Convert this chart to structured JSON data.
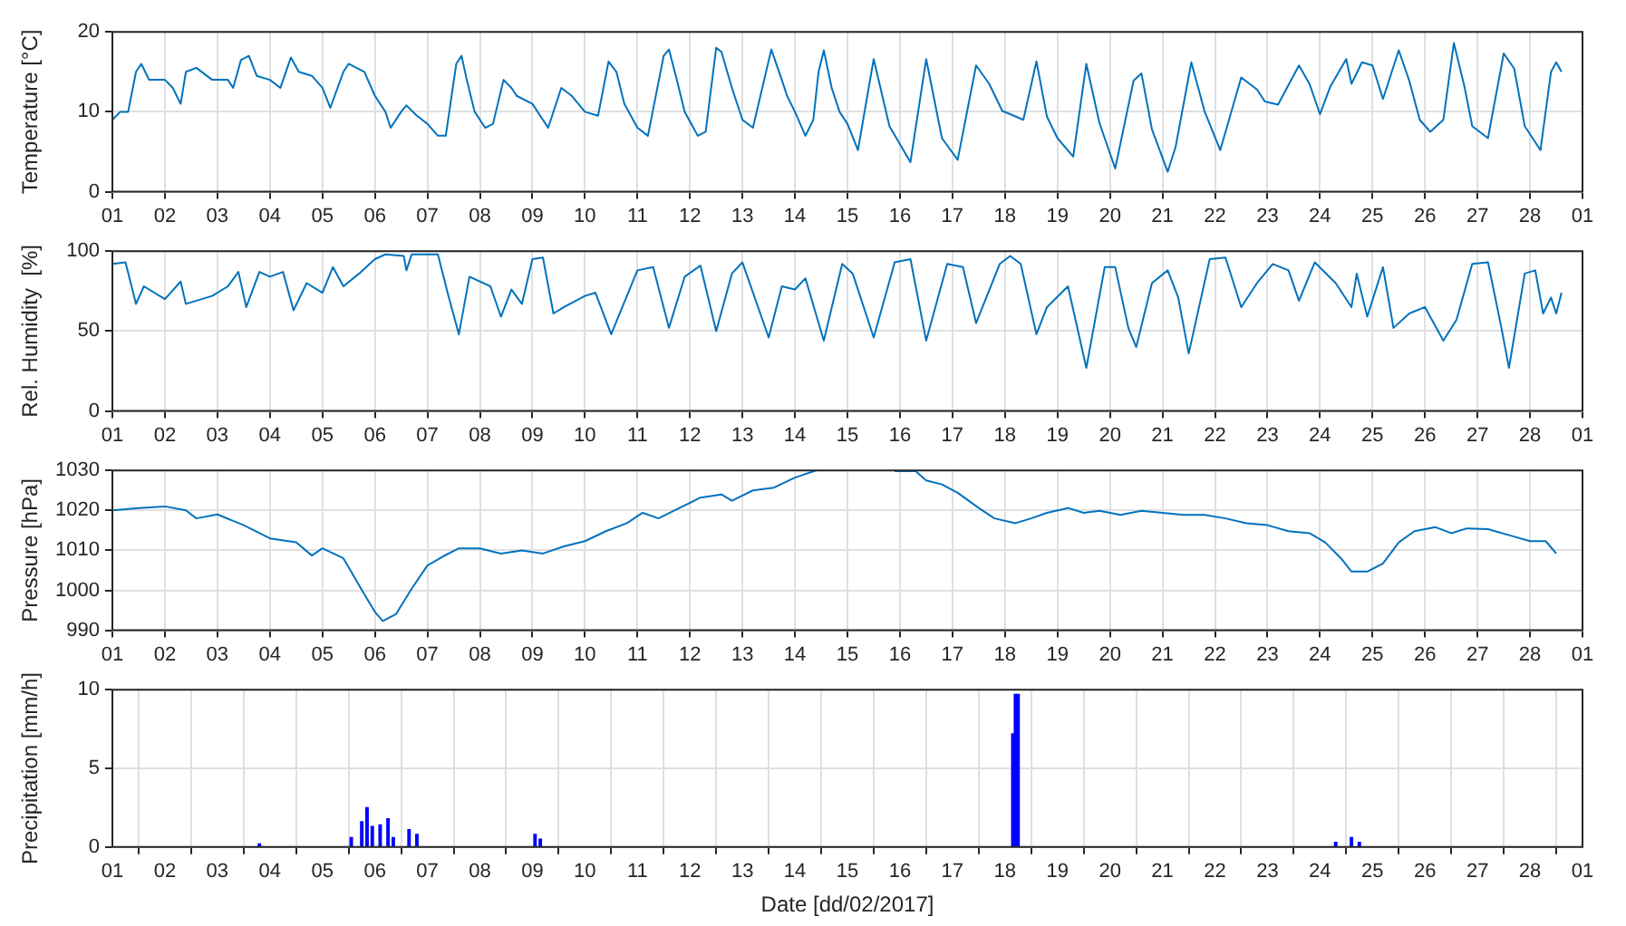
{
  "chart_data": [
    {
      "type": "line",
      "ylabel": "Temperature [°C]",
      "color": "#0072bd",
      "grid": true,
      "xlim": [
        "2017-02-01",
        "2017-03-01"
      ],
      "ylim": [
        0,
        20
      ],
      "yticks": [
        0,
        10,
        20
      ],
      "xticks": [
        {
          "value": "2017-02-01",
          "label": "01"
        },
        {
          "value": "2017-02-02",
          "label": "02"
        },
        {
          "value": "2017-02-03",
          "label": "03"
        },
        {
          "value": "2017-02-04",
          "label": "04"
        },
        {
          "value": "2017-02-05",
          "label": "05"
        },
        {
          "value": "2017-02-06",
          "label": "06"
        },
        {
          "value": "2017-02-07",
          "label": "07"
        },
        {
          "value": "2017-02-08",
          "label": "08"
        },
        {
          "value": "2017-02-09",
          "label": "09"
        },
        {
          "value": "2017-02-10",
          "label": "10"
        },
        {
          "value": "2017-02-11",
          "label": "11"
        },
        {
          "value": "2017-02-12",
          "label": "12"
        },
        {
          "value": "2017-02-13",
          "label": "13"
        },
        {
          "value": "2017-02-14",
          "label": "14"
        },
        {
          "value": "2017-02-15",
          "label": "15"
        },
        {
          "value": "2017-02-16",
          "label": "16"
        },
        {
          "value": "2017-02-17",
          "label": "17"
        },
        {
          "value": "2017-02-18",
          "label": "18"
        },
        {
          "value": "2017-02-19",
          "label": "19"
        },
        {
          "value": "2017-02-20",
          "label": "20"
        },
        {
          "value": "2017-02-21",
          "label": "21"
        },
        {
          "value": "2017-02-22",
          "label": "22"
        },
        {
          "value": "2017-02-23",
          "label": "23"
        },
        {
          "value": "2017-02-24",
          "label": "24"
        },
        {
          "value": "2017-02-25",
          "label": "25"
        },
        {
          "value": "2017-02-26",
          "label": "26"
        },
        {
          "value": "2017-02-27",
          "label": "27"
        },
        {
          "value": "2017-02-28",
          "label": "28"
        },
        {
          "value": "2017-03-01",
          "label": "01"
        }
      ],
      "x": [
        "2017-02-01T00:00",
        "2017-02-01T03:36",
        "2017-02-01T07:12",
        "2017-02-01T10:48",
        "2017-02-01T13:12",
        "2017-02-01T16:48",
        "2017-02-02T00:00",
        "2017-02-02T03:36",
        "2017-02-02T07:12",
        "2017-02-02T09:36",
        "2017-02-02T14:24",
        "2017-02-02T21:36",
        "2017-02-03T04:48",
        "2017-02-03T07:12",
        "2017-02-03T10:48",
        "2017-02-03T14:24",
        "2017-02-03T18:00",
        "2017-02-04T00:00",
        "2017-02-04T04:48",
        "2017-02-04T09:36",
        "2017-02-04T13:12",
        "2017-02-04T19:12",
        "2017-02-05T00:00",
        "2017-02-05T03:36",
        "2017-02-05T09:36",
        "2017-02-05T12:00",
        "2017-02-05T19:12",
        "2017-02-06T00:00",
        "2017-02-06T04:48",
        "2017-02-06T07:12",
        "2017-02-06T12:00",
        "2017-02-06T14:24",
        "2017-02-06T19:12",
        "2017-02-07T00:00",
        "2017-02-07T04:48",
        "2017-02-07T08:24",
        "2017-02-07T13:12",
        "2017-02-07T15:36",
        "2017-02-07T18:00",
        "2017-02-07T21:36",
        "2017-02-08T02:24",
        "2017-02-08T06:00",
        "2017-02-08T10:48",
        "2017-02-08T14:24",
        "2017-02-08T16:48",
        "2017-02-09T00:00",
        "2017-02-09T04:48",
        "2017-02-09T07:12",
        "2017-02-09T13:12",
        "2017-02-09T18:00",
        "2017-02-10T00:00",
        "2017-02-10T06:00",
        "2017-02-10T10:48",
        "2017-02-10T14:24",
        "2017-02-10T18:00",
        "2017-02-11T00:00",
        "2017-02-11T04:48",
        "2017-02-11T12:00",
        "2017-02-11T14:24",
        "2017-02-11T18:00",
        "2017-02-11T21:36",
        "2017-02-12T03:36",
        "2017-02-12T07:12",
        "2017-02-12T12:00",
        "2017-02-12T14:24",
        "2017-02-12T19:12",
        "2017-02-13T00:00",
        "2017-02-13T04:48",
        "2017-02-13T13:12",
        "2017-02-13T18:00",
        "2017-02-13T20:24",
        "2017-02-14T00:00",
        "2017-02-14T04:48",
        "2017-02-14T08:24",
        "2017-02-14T10:48",
        "2017-02-14T13:12",
        "2017-02-14T16:48",
        "2017-02-14T20:24",
        "2017-02-15T00:00",
        "2017-02-15T04:48",
        "2017-02-15T12:00",
        "2017-02-15T19:12",
        "2017-02-16T04:48",
        "2017-02-16T12:00",
        "2017-02-16T19:12",
        "2017-02-17T02:24",
        "2017-02-17T10:48",
        "2017-02-17T16:48",
        "2017-02-17T22:48",
        "2017-02-18T02:24",
        "2017-02-18T08:24",
        "2017-02-18T14:24",
        "2017-02-18T19:12",
        "2017-02-19T00:00",
        "2017-02-19T07:12",
        "2017-02-19T13:12",
        "2017-02-19T19:12",
        "2017-02-20T02:24",
        "2017-02-20T10:48",
        "2017-02-20T14:24",
        "2017-02-20T19:12",
        "2017-02-21T02:24",
        "2017-02-21T06:00",
        "2017-02-21T13:12",
        "2017-02-21T19:12",
        "2017-02-22T02:24",
        "2017-02-22T12:00",
        "2017-02-22T19:12",
        "2017-02-22T22:48",
        "2017-02-23T04:48",
        "2017-02-23T14:24",
        "2017-02-23T19:12",
        "2017-02-24T00:00",
        "2017-02-24T04:48",
        "2017-02-24T12:00",
        "2017-02-24T14:24",
        "2017-02-24T19:12",
        "2017-02-25T00:00",
        "2017-02-25T04:48",
        "2017-02-25T12:00",
        "2017-02-25T16:48",
        "2017-02-25T21:36",
        "2017-02-26T02:24",
        "2017-02-26T08:24",
        "2017-02-26T13:12",
        "2017-02-26T18:00",
        "2017-02-26T21:36",
        "2017-02-27T04:48",
        "2017-02-27T12:00",
        "2017-02-27T16:48",
        "2017-02-27T21:36",
        "2017-02-28T04:48",
        "2017-02-28T09:36",
        "2017-02-28T12:00",
        "2017-02-28T14:24"
      ],
      "values": [
        9,
        10,
        10,
        15,
        16,
        14,
        14,
        13,
        11,
        15,
        15.5,
        14,
        14,
        13,
        16.5,
        17,
        14.5,
        14,
        13,
        16.8,
        15,
        14.5,
        13,
        10.5,
        15,
        16,
        15,
        12,
        10,
        8,
        10,
        10.8,
        9.5,
        8.5,
        7,
        7,
        16,
        17,
        14,
        10,
        8,
        8.5,
        14,
        13,
        12,
        11,
        9,
        8,
        13,
        12,
        10,
        9.5,
        16.3,
        15,
        11,
        8,
        7,
        17,
        17.8,
        14,
        10,
        7,
        7.5,
        18,
        17.5,
        13,
        9,
        8,
        17.8,
        14,
        12,
        10,
        7,
        9,
        15,
        17.7,
        13,
        10,
        8.5,
        5.2,
        16.6,
        8.2,
        3.7,
        16.6,
        6.7,
        4,
        15.8,
        13.5,
        10.1,
        9.7,
        9,
        16.3,
        9.4,
        6.7,
        4.4,
        16,
        8.6,
        2.9,
        13.9,
        14.8,
        7.8,
        2.5,
        5.6,
        16.2,
        10.1,
        5.2,
        14.3,
        12.8,
        11.3,
        10.9,
        15.8,
        13.5,
        9.7,
        13.2,
        16.6,
        13.5,
        16.2,
        15.8,
        11.6,
        17.7,
        13.9,
        9,
        7.5,
        9,
        18.6,
        13.2,
        8.2,
        6.7,
        17.3,
        15.4,
        8.2,
        5.2,
        15,
        16.2,
        15
      ]
    },
    {
      "type": "line",
      "ylabel": "Rel. Humidity  [%]",
      "color": "#0072bd",
      "grid": true,
      "xlim": [
        "2017-02-01",
        "2017-03-01"
      ],
      "ylim": [
        0,
        100
      ],
      "yticks": [
        0,
        50,
        100
      ],
      "xticks": [
        {
          "value": "2017-02-01",
          "label": "01"
        },
        {
          "value": "2017-02-02",
          "label": "02"
        },
        {
          "value": "2017-02-03",
          "label": "03"
        },
        {
          "value": "2017-02-04",
          "label": "04"
        },
        {
          "value": "2017-02-05",
          "label": "05"
        },
        {
          "value": "2017-02-06",
          "label": "06"
        },
        {
          "value": "2017-02-07",
          "label": "07"
        },
        {
          "value": "2017-02-08",
          "label": "08"
        },
        {
          "value": "2017-02-09",
          "label": "09"
        },
        {
          "value": "2017-02-10",
          "label": "10"
        },
        {
          "value": "2017-02-11",
          "label": "11"
        },
        {
          "value": "2017-02-12",
          "label": "12"
        },
        {
          "value": "2017-02-13",
          "label": "13"
        },
        {
          "value": "2017-02-14",
          "label": "14"
        },
        {
          "value": "2017-02-15",
          "label": "15"
        },
        {
          "value": "2017-02-16",
          "label": "16"
        },
        {
          "value": "2017-02-17",
          "label": "17"
        },
        {
          "value": "2017-02-18",
          "label": "18"
        },
        {
          "value": "2017-02-19",
          "label": "19"
        },
        {
          "value": "2017-02-20",
          "label": "20"
        },
        {
          "value": "2017-02-21",
          "label": "21"
        },
        {
          "value": "2017-02-22",
          "label": "22"
        },
        {
          "value": "2017-02-23",
          "label": "23"
        },
        {
          "value": "2017-02-24",
          "label": "24"
        },
        {
          "value": "2017-02-25",
          "label": "25"
        },
        {
          "value": "2017-02-26",
          "label": "26"
        },
        {
          "value": "2017-02-27",
          "label": "27"
        },
        {
          "value": "2017-02-28",
          "label": "28"
        },
        {
          "value": "2017-03-01",
          "label": "01"
        }
      ],
      "x": [
        "2017-02-01T00:00",
        "2017-02-01T06:00",
        "2017-02-01T10:48",
        "2017-02-01T14:24",
        "2017-02-02T00:00",
        "2017-02-02T07:12",
        "2017-02-02T09:36",
        "2017-02-02T21:36",
        "2017-02-03T04:48",
        "2017-02-03T09:36",
        "2017-02-03T13:12",
        "2017-02-03T19:12",
        "2017-02-04T00:00",
        "2017-02-04T06:00",
        "2017-02-04T10:48",
        "2017-02-04T16:48",
        "2017-02-05T00:00",
        "2017-02-05T04:48",
        "2017-02-05T09:36",
        "2017-02-05T16:48",
        "2017-02-06T00:00",
        "2017-02-06T04:48",
        "2017-02-06T13:12",
        "2017-02-06T14:24",
        "2017-02-06T16:48",
        "2017-02-07T04:48",
        "2017-02-07T09:36",
        "2017-02-07T14:24",
        "2017-02-07T19:12",
        "2017-02-08T04:48",
        "2017-02-08T09:36",
        "2017-02-08T14:24",
        "2017-02-08T19:12",
        "2017-02-09T00:00",
        "2017-02-09T04:48",
        "2017-02-09T09:36",
        "2017-02-09T14:24",
        "2017-02-10T00:00",
        "2017-02-10T04:48",
        "2017-02-10T12:00",
        "2017-02-11T00:00",
        "2017-02-11T07:12",
        "2017-02-11T14:24",
        "2017-02-11T21:36",
        "2017-02-12T04:48",
        "2017-02-12T12:00",
        "2017-02-12T19:12",
        "2017-02-13T00:00",
        "2017-02-13T12:00",
        "2017-02-13T18:00",
        "2017-02-14T00:00",
        "2017-02-14T04:48",
        "2017-02-14T13:12",
        "2017-02-14T21:36",
        "2017-02-15T02:24",
        "2017-02-15T12:00",
        "2017-02-15T21:36",
        "2017-02-16T04:48",
        "2017-02-16T12:00",
        "2017-02-16T21:36",
        "2017-02-17T04:48",
        "2017-02-17T10:48",
        "2017-02-17T21:36",
        "2017-02-18T02:24",
        "2017-02-18T07:12",
        "2017-02-18T14:24",
        "2017-02-18T19:12",
        "2017-02-19T04:48",
        "2017-02-19T13:12",
        "2017-02-19T21:36",
        "2017-02-20T02:24",
        "2017-02-20T08:24",
        "2017-02-20T12:00",
        "2017-02-20T19:12",
        "2017-02-21T02:24",
        "2017-02-21T07:12",
        "2017-02-21T12:00",
        "2017-02-21T21:36",
        "2017-02-22T04:48",
        "2017-02-22T12:00",
        "2017-02-22T19:12",
        "2017-02-23T02:24",
        "2017-02-23T09:36",
        "2017-02-23T14:24",
        "2017-02-23T21:36",
        "2017-02-24T07:12",
        "2017-02-24T14:24",
        "2017-02-24T16:48",
        "2017-02-24T21:36",
        "2017-02-25T04:48",
        "2017-02-25T09:36",
        "2017-02-25T16:48",
        "2017-02-26T00:00",
        "2017-02-26T08:24",
        "2017-02-26T14:24",
        "2017-02-26T21:36",
        "2017-02-27T04:48",
        "2017-02-27T10:48",
        "2017-02-27T14:24",
        "2017-02-27T21:36",
        "2017-02-28T02:24",
        "2017-02-28T06:00",
        "2017-02-28T09:36",
        "2017-02-28T12:00",
        "2017-02-28T14:24"
      ],
      "values": [
        92,
        93,
        67,
        78,
        70,
        81,
        67,
        72,
        78,
        87,
        65,
        87,
        84,
        87,
        63,
        80,
        74,
        90,
        78,
        86,
        95,
        98,
        97,
        88,
        98,
        98,
        72,
        48,
        84,
        78,
        59,
        76,
        67,
        95,
        96,
        61,
        65,
        72,
        74,
        48,
        88,
        90,
        52,
        84,
        91,
        50,
        86,
        93,
        46,
        78,
        76,
        83,
        44,
        92,
        86,
        46,
        93,
        95,
        44,
        92,
        90,
        55,
        92,
        97,
        92,
        48,
        65,
        78,
        27,
        90,
        90,
        52,
        40,
        80,
        88,
        71,
        36,
        95,
        96,
        65,
        80,
        92,
        88,
        69,
        93,
        80,
        65,
        86,
        59,
        90,
        52,
        61,
        65,
        44,
        57,
        92,
        93,
        53,
        27,
        86,
        88,
        61,
        71,
        61,
        74
      ]
    },
    {
      "type": "line",
      "ylabel": "Pressure [hPa]",
      "color": "#0072bd",
      "grid": true,
      "xlim": [
        "2017-02-01",
        "2017-03-01"
      ],
      "ylim": [
        990,
        1030
      ],
      "yticks": [
        990,
        1000,
        1010,
        1020,
        1030
      ],
      "xticks": [
        {
          "value": "2017-02-01",
          "label": "01"
        },
        {
          "value": "2017-02-02",
          "label": "02"
        },
        {
          "value": "2017-02-03",
          "label": "03"
        },
        {
          "value": "2017-02-04",
          "label": "04"
        },
        {
          "value": "2017-02-05",
          "label": "05"
        },
        {
          "value": "2017-02-06",
          "label": "06"
        },
        {
          "value": "2017-02-07",
          "label": "07"
        },
        {
          "value": "2017-02-08",
          "label": "08"
        },
        {
          "value": "2017-02-09",
          "label": "09"
        },
        {
          "value": "2017-02-10",
          "label": "10"
        },
        {
          "value": "2017-02-11",
          "label": "11"
        },
        {
          "value": "2017-02-12",
          "label": "12"
        },
        {
          "value": "2017-02-13",
          "label": "13"
        },
        {
          "value": "2017-02-14",
          "label": "14"
        },
        {
          "value": "2017-02-15",
          "label": "15"
        },
        {
          "value": "2017-02-16",
          "label": "16"
        },
        {
          "value": "2017-02-17",
          "label": "17"
        },
        {
          "value": "2017-02-18",
          "label": "18"
        },
        {
          "value": "2017-02-19",
          "label": "19"
        },
        {
          "value": "2017-02-20",
          "label": "20"
        },
        {
          "value": "2017-02-21",
          "label": "21"
        },
        {
          "value": "2017-02-22",
          "label": "22"
        },
        {
          "value": "2017-02-23",
          "label": "23"
        },
        {
          "value": "2017-02-24",
          "label": "24"
        },
        {
          "value": "2017-02-25",
          "label": "25"
        },
        {
          "value": "2017-02-26",
          "label": "26"
        },
        {
          "value": "2017-02-27",
          "label": "27"
        },
        {
          "value": "2017-02-28",
          "label": "28"
        },
        {
          "value": "2017-03-01",
          "label": "01"
        }
      ],
      "x": [
        "2017-02-01T00:00",
        "2017-02-01T12:00",
        "2017-02-02T00:00",
        "2017-02-02T09:36",
        "2017-02-02T14:24",
        "2017-02-03T00:00",
        "2017-02-03T12:00",
        "2017-02-04T00:00",
        "2017-02-04T12:00",
        "2017-02-04T19:12",
        "2017-02-05T00:00",
        "2017-02-05T09:36",
        "2017-02-05T19:12",
        "2017-02-06T00:00",
        "2017-02-06T03:36",
        "2017-02-06T09:36",
        "2017-02-06T16:48",
        "2017-02-07T00:00",
        "2017-02-07T07:12",
        "2017-02-07T14:24",
        "2017-02-08T00:00",
        "2017-02-08T09:36",
        "2017-02-08T19:12",
        "2017-02-09T04:48",
        "2017-02-09T14:24",
        "2017-02-10T00:00",
        "2017-02-10T09:36",
        "2017-02-10T19:12",
        "2017-02-11T02:24",
        "2017-02-11T09:36",
        "2017-02-11T19:12",
        "2017-02-12T04:48",
        "2017-02-12T14:24",
        "2017-02-12T19:12",
        "2017-02-13T04:48",
        "2017-02-13T14:24",
        "2017-02-14T00:00",
        "2017-02-14T09:36",
        "2017-02-15T00:00",
        "2017-02-15T21:36",
        "2017-02-16T07:12",
        "2017-02-16T12:00",
        "2017-02-16T19:12",
        "2017-02-17T02:24",
        "2017-02-17T12:00",
        "2017-02-17T19:12",
        "2017-02-18T04:48",
        "2017-02-18T12:00",
        "2017-02-18T19:12",
        "2017-02-19T04:48",
        "2017-02-19T12:00",
        "2017-02-19T19:12",
        "2017-02-20T04:48",
        "2017-02-20T14:24",
        "2017-02-21T00:00",
        "2017-02-21T09:36",
        "2017-02-21T19:12",
        "2017-02-22T04:48",
        "2017-02-22T14:24",
        "2017-02-23T00:00",
        "2017-02-23T09:36",
        "2017-02-23T19:12",
        "2017-02-24T02:24",
        "2017-02-24T09:36",
        "2017-02-24T14:24",
        "2017-02-24T21:36",
        "2017-02-25T04:48",
        "2017-02-25T12:00",
        "2017-02-25T19:12",
        "2017-02-26T04:48",
        "2017-02-26T12:00",
        "2017-02-26T19:12",
        "2017-02-27T04:48",
        "2017-02-27T14:24",
        "2017-02-28T00:00",
        "2017-02-28T07:12",
        "2017-02-28T12:00"
      ],
      "values": [
        1020,
        1020.6,
        1021,
        1020,
        1018,
        1019,
        1016.3,
        1013,
        1012,
        1008.7,
        1010.5,
        1008,
        999,
        994.6,
        992.3,
        994,
        1000.4,
        1006.2,
        1008.5,
        1010.5,
        1010.5,
        1009.2,
        1010,
        1009.2,
        1011,
        1012.3,
        1014.8,
        1016.8,
        1019.4,
        1018,
        1020.6,
        1023.2,
        1024,
        1022.4,
        1025,
        1025.7,
        1028.2,
        1030,
        null,
        1029.8,
        1029.8,
        1027.5,
        1026.5,
        1024.4,
        1020.6,
        1018,
        1016.8,
        1018,
        1019.4,
        1020.6,
        1019.4,
        1019.9,
        1018.9,
        1019.9,
        1019.4,
        1018.9,
        1018.9,
        1018,
        1016.8,
        1016.3,
        1014.8,
        1014.3,
        1012,
        1008,
        1004.7,
        1004.7,
        1006.7,
        1012,
        1014.8,
        1015.8,
        1014.3,
        1015.5,
        1015.3,
        1013.8,
        1012.3,
        1012.3,
        1009.2
      ]
    },
    {
      "type": "bar",
      "ylabel": "Precipitation [mm/h]",
      "xlabel": "Date [dd/02/2017]",
      "color": "#0000ff",
      "grid": true,
      "xlim": [
        "2017-02-01",
        "2017-03-01"
      ],
      "ylim": [
        0,
        10
      ],
      "yticks": [
        0,
        5,
        10
      ],
      "xticks": [
        {
          "value": "2017-02-01",
          "label": "01"
        },
        {
          "value": "2017-02-02",
          "label": "02"
        },
        {
          "value": "2017-02-03",
          "label": "03"
        },
        {
          "value": "2017-02-04",
          "label": "04"
        },
        {
          "value": "2017-02-05",
          "label": "05"
        },
        {
          "value": "2017-02-06",
          "label": "06"
        },
        {
          "value": "2017-02-07",
          "label": "07"
        },
        {
          "value": "2017-02-08",
          "label": "08"
        },
        {
          "value": "2017-02-09",
          "label": "09"
        },
        {
          "value": "2017-02-10",
          "label": "10"
        },
        {
          "value": "2017-02-11",
          "label": "11"
        },
        {
          "value": "2017-02-12",
          "label": "12"
        },
        {
          "value": "2017-02-13",
          "label": "13"
        },
        {
          "value": "2017-02-14",
          "label": "14"
        },
        {
          "value": "2017-02-15",
          "label": "15"
        },
        {
          "value": "2017-02-16",
          "label": "16"
        },
        {
          "value": "2017-02-17",
          "label": "17"
        },
        {
          "value": "2017-02-18",
          "label": "18"
        },
        {
          "value": "2017-02-19",
          "label": "19"
        },
        {
          "value": "2017-02-20",
          "label": "20"
        },
        {
          "value": "2017-02-21",
          "label": "21"
        },
        {
          "value": "2017-02-22",
          "label": "22"
        },
        {
          "value": "2017-02-23",
          "label": "23"
        },
        {
          "value": "2017-02-24",
          "label": "24"
        },
        {
          "value": "2017-02-25",
          "label": "25"
        },
        {
          "value": "2017-02-26",
          "label": "26"
        },
        {
          "value": "2017-02-27",
          "label": "27"
        },
        {
          "value": "2017-02-28",
          "label": "28"
        },
        {
          "value": "2017-03-01",
          "label": "01"
        }
      ],
      "x": [
        "2017-02-03T19:12",
        "2017-02-05T13:12",
        "2017-02-05T18:00",
        "2017-02-05T20:24",
        "2017-02-05T22:48",
        "2017-02-06T02:24",
        "2017-02-06T06:00",
        "2017-02-06T08:24",
        "2017-02-06T15:36",
        "2017-02-06T19:12",
        "2017-02-09T01:12",
        "2017-02-09T03:36",
        "2017-02-18T03:36",
        "2017-02-18T04:48",
        "2017-02-18T06:00",
        "2017-02-24T07:12",
        "2017-02-24T14:24",
        "2017-02-24T18:00"
      ],
      "values": [
        0.2,
        0.6,
        1.6,
        2.5,
        1.3,
        1.4,
        1.8,
        0.6,
        1.1,
        0.8,
        0.8,
        0.5,
        7.2,
        9.7,
        9.7,
        0.3,
        0.6,
        0.3
      ]
    }
  ]
}
